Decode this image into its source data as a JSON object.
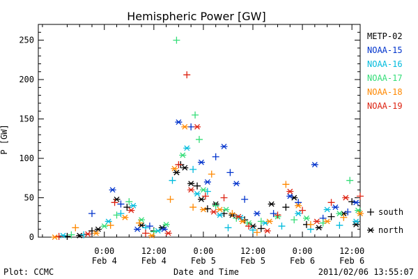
{
  "chart_data": {
    "type": "scatter",
    "title": "Hemispheric Power [GW]",
    "ylabel": "P [GW]",
    "xlabel": "Date and Time",
    "ylim": [
      0,
      270
    ],
    "yticks": [
      0,
      50,
      100,
      150,
      200,
      250
    ],
    "xlim_hours": [
      -16,
      62
    ],
    "xticks": [
      {
        "hour": 0,
        "time": "0:00",
        "date": "Feb 4"
      },
      {
        "hour": 12,
        "time": "12:00",
        "date": "Feb 4"
      },
      {
        "hour": 24,
        "time": "0:00",
        "date": "Feb 5"
      },
      {
        "hour": 36,
        "time": "12:00",
        "date": "Feb 5"
      },
      {
        "hour": 48,
        "time": "0:00",
        "date": "Feb 6"
      },
      {
        "hour": 60,
        "time": "12:00",
        "date": "Feb 6"
      }
    ],
    "legend": {
      "placement": "right",
      "series_labels": [
        "METP-02",
        "NOAA-15",
        "NOAA-16",
        "NOAA-17",
        "NOAA-18",
        "NOAA-19"
      ],
      "marker_labels": [
        {
          "symbol": "+",
          "label": "south"
        },
        {
          "symbol": "*",
          "label": "north"
        }
      ]
    },
    "series": [
      {
        "name": "METP-02",
        "color": "#000000",
        "points": [
          {
            "x": -9,
            "y": 1,
            "m": "+"
          },
          {
            "x": -6,
            "y": 2,
            "m": "*"
          },
          {
            "x": -3,
            "y": 8,
            "m": "+"
          },
          {
            "x": -1.5,
            "y": 10,
            "m": "*"
          },
          {
            "x": 3,
            "y": 48,
            "m": "*"
          },
          {
            "x": 5.5,
            "y": 38,
            "m": "+"
          },
          {
            "x": 9,
            "y": 15,
            "m": "*"
          },
          {
            "x": 12,
            "y": 8,
            "m": "+"
          },
          {
            "x": 14,
            "y": 12,
            "m": "*"
          },
          {
            "x": 17.5,
            "y": 82,
            "m": "*"
          },
          {
            "x": 18.5,
            "y": 92,
            "m": "+"
          },
          {
            "x": 19.5,
            "y": 88,
            "m": "*"
          },
          {
            "x": 21,
            "y": 68,
            "m": "*"
          },
          {
            "x": 22.5,
            "y": 65,
            "m": "+"
          },
          {
            "x": 23.5,
            "y": 48,
            "m": "*"
          },
          {
            "x": 25,
            "y": 36,
            "m": "+"
          },
          {
            "x": 27,
            "y": 42,
            "m": "*"
          },
          {
            "x": 29,
            "y": 30,
            "m": "+"
          },
          {
            "x": 31,
            "y": 28,
            "m": "*"
          },
          {
            "x": 34,
            "y": 22,
            "m": "+"
          },
          {
            "x": 36,
            "y": 14,
            "m": "*"
          },
          {
            "x": 38,
            "y": 11,
            "m": "+"
          },
          {
            "x": 40.5,
            "y": 42,
            "m": "*"
          },
          {
            "x": 44,
            "y": 38,
            "m": "+"
          },
          {
            "x": 46,
            "y": 50,
            "m": "*"
          },
          {
            "x": 49,
            "y": 16,
            "m": "+"
          },
          {
            "x": 52,
            "y": 12,
            "m": "*"
          },
          {
            "x": 55,
            "y": 26,
            "m": "+"
          },
          {
            "x": 58,
            "y": 30,
            "m": "*"
          },
          {
            "x": 60,
            "y": 45,
            "m": "+"
          },
          {
            "x": 61,
            "y": 16,
            "m": "*"
          }
        ]
      },
      {
        "name": "NOAA-15",
        "color": "#0033cc",
        "points": [
          {
            "x": -3,
            "y": 30,
            "m": "+"
          },
          {
            "x": 2,
            "y": 60,
            "m": "*"
          },
          {
            "x": 4,
            "y": 42,
            "m": "+"
          },
          {
            "x": 8,
            "y": 10,
            "m": "*"
          },
          {
            "x": 11,
            "y": 14,
            "m": "+"
          },
          {
            "x": 14.5,
            "y": 10,
            "m": "*"
          },
          {
            "x": 18,
            "y": 146,
            "m": "*"
          },
          {
            "x": 21,
            "y": 140,
            "m": "+"
          },
          {
            "x": 23.5,
            "y": 95,
            "m": "*"
          },
          {
            "x": 25,
            "y": 70,
            "m": "*"
          },
          {
            "x": 27,
            "y": 102,
            "m": "+"
          },
          {
            "x": 29,
            "y": 115,
            "m": "*"
          },
          {
            "x": 30.5,
            "y": 82,
            "m": "+"
          },
          {
            "x": 32,
            "y": 68,
            "m": "*"
          },
          {
            "x": 34,
            "y": 48,
            "m": "+"
          },
          {
            "x": 37,
            "y": 30,
            "m": "*"
          },
          {
            "x": 41,
            "y": 30,
            "m": "+"
          },
          {
            "x": 45,
            "y": 52,
            "m": "*"
          },
          {
            "x": 47,
            "y": 44,
            "m": "+"
          },
          {
            "x": 51,
            "y": 92,
            "m": "*"
          },
          {
            "x": 53,
            "y": 24,
            "m": "+"
          },
          {
            "x": 56,
            "y": 38,
            "m": "*"
          },
          {
            "x": 59,
            "y": 32,
            "m": "+"
          },
          {
            "x": 61,
            "y": 44,
            "m": "*"
          }
        ]
      },
      {
        "name": "NOAA-16",
        "color": "#00bbdd",
        "points": [
          {
            "x": -10,
            "y": 2,
            "m": "*"
          },
          {
            "x": -5,
            "y": 3,
            "m": "+"
          },
          {
            "x": 1,
            "y": 20,
            "m": "*"
          },
          {
            "x": 4,
            "y": 30,
            "m": "+"
          },
          {
            "x": 7,
            "y": 40,
            "m": "*"
          },
          {
            "x": 10,
            "y": 12,
            "m": "+"
          },
          {
            "x": 13,
            "y": 8,
            "m": "*"
          },
          {
            "x": 16.5,
            "y": 72,
            "m": "+"
          },
          {
            "x": 20,
            "y": 113,
            "m": "*"
          },
          {
            "x": 21.5,
            "y": 86,
            "m": "+"
          },
          {
            "x": 22.5,
            "y": 55,
            "m": "*"
          },
          {
            "x": 25,
            "y": 58,
            "m": "+"
          },
          {
            "x": 28,
            "y": 28,
            "m": "*"
          },
          {
            "x": 30,
            "y": 12,
            "m": "+"
          },
          {
            "x": 33,
            "y": 25,
            "m": "*"
          },
          {
            "x": 36,
            "y": 9,
            "m": "+"
          },
          {
            "x": 39,
            "y": 18,
            "m": "*"
          },
          {
            "x": 43,
            "y": 14,
            "m": "+"
          },
          {
            "x": 47,
            "y": 30,
            "m": "*"
          },
          {
            "x": 50,
            "y": 10,
            "m": "+"
          },
          {
            "x": 54,
            "y": 35,
            "m": "*"
          },
          {
            "x": 57,
            "y": 15,
            "m": "+"
          },
          {
            "x": 61,
            "y": 20,
            "m": "*"
          }
        ]
      },
      {
        "name": "NOAA-17",
        "color": "#33dd77",
        "points": [
          {
            "x": -8,
            "y": 3,
            "m": "+"
          },
          {
            "x": 0,
            "y": 14,
            "m": "*"
          },
          {
            "x": 3,
            "y": 28,
            "m": "+"
          },
          {
            "x": 6,
            "y": 45,
            "m": "+"
          },
          {
            "x": 9,
            "y": 22,
            "m": "*"
          },
          {
            "x": 12,
            "y": 7,
            "m": "+"
          },
          {
            "x": 15,
            "y": 16,
            "m": "*"
          },
          {
            "x": 17.5,
            "y": 250,
            "m": "+"
          },
          {
            "x": 19,
            "y": 104,
            "m": "*"
          },
          {
            "x": 22,
            "y": 155,
            "m": "+"
          },
          {
            "x": 23,
            "y": 124,
            "m": "+"
          },
          {
            "x": 24,
            "y": 60,
            "m": "*"
          },
          {
            "x": 27,
            "y": 40,
            "m": "+"
          },
          {
            "x": 29.5,
            "y": 35,
            "m": "*"
          },
          {
            "x": 32,
            "y": 24,
            "m": "+"
          },
          {
            "x": 35,
            "y": 18,
            "m": "*"
          },
          {
            "x": 38,
            "y": 20,
            "m": "+"
          },
          {
            "x": 42,
            "y": 26,
            "m": "*"
          },
          {
            "x": 46,
            "y": 22,
            "m": "+"
          },
          {
            "x": 49,
            "y": 24,
            "m": "*"
          },
          {
            "x": 53,
            "y": 18,
            "m": "+"
          },
          {
            "x": 57,
            "y": 30,
            "m": "*"
          },
          {
            "x": 59.5,
            "y": 72,
            "m": "+"
          },
          {
            "x": 61.5,
            "y": 34,
            "m": "*"
          }
        ]
      },
      {
        "name": "NOAA-18",
        "color": "#ff8800",
        "points": [
          {
            "x": -12,
            "y": 0,
            "m": "*"
          },
          {
            "x": -7,
            "y": 12,
            "m": "+"
          },
          {
            "x": -2,
            "y": 5,
            "m": "*"
          },
          {
            "x": 1.5,
            "y": 15,
            "m": "+"
          },
          {
            "x": 5,
            "y": 25,
            "m": "*"
          },
          {
            "x": 8.5,
            "y": 18,
            "m": "+"
          },
          {
            "x": 11.5,
            "y": 2,
            "m": "*"
          },
          {
            "x": 16,
            "y": 48,
            "m": "+"
          },
          {
            "x": 17,
            "y": 87,
            "m": "*"
          },
          {
            "x": 19.5,
            "y": 140,
            "m": "*"
          },
          {
            "x": 21.5,
            "y": 38,
            "m": "+"
          },
          {
            "x": 24,
            "y": 35,
            "m": "*"
          },
          {
            "x": 26,
            "y": 80,
            "m": "+"
          },
          {
            "x": 28,
            "y": 35,
            "m": "*"
          },
          {
            "x": 31,
            "y": 30,
            "m": "+"
          },
          {
            "x": 33.5,
            "y": 20,
            "m": "*"
          },
          {
            "x": 37,
            "y": 6,
            "m": "+"
          },
          {
            "x": 40,
            "y": 20,
            "m": "*"
          },
          {
            "x": 44,
            "y": 67,
            "m": "+"
          },
          {
            "x": 47,
            "y": 40,
            "m": "*"
          },
          {
            "x": 50,
            "y": 16,
            "m": "+"
          },
          {
            "x": 54,
            "y": 20,
            "m": "*"
          },
          {
            "x": 58,
            "y": 25,
            "m": "+"
          },
          {
            "x": 62,
            "y": 30,
            "m": "*"
          }
        ]
      },
      {
        "name": "NOAA-19",
        "color": "#dd2211",
        "points": [
          {
            "x": -11,
            "y": 1,
            "m": "+"
          },
          {
            "x": -4,
            "y": 4,
            "m": "*"
          },
          {
            "x": 2.5,
            "y": 44,
            "m": "+"
          },
          {
            "x": 6.5,
            "y": 34,
            "m": "*"
          },
          {
            "x": 10,
            "y": 5,
            "m": "+"
          },
          {
            "x": 15.5,
            "y": 5,
            "m": "*"
          },
          {
            "x": 18,
            "y": 92,
            "m": "+"
          },
          {
            "x": 20,
            "y": 206,
            "m": "+"
          },
          {
            "x": 21,
            "y": 60,
            "m": "*"
          },
          {
            "x": 22.5,
            "y": 140,
            "m": "*"
          },
          {
            "x": 24.5,
            "y": 52,
            "m": "+"
          },
          {
            "x": 26.5,
            "y": 32,
            "m": "*"
          },
          {
            "x": 29,
            "y": 50,
            "m": "+"
          },
          {
            "x": 32.5,
            "y": 26,
            "m": "*"
          },
          {
            "x": 35,
            "y": 14,
            "m": "+"
          },
          {
            "x": 39.5,
            "y": 8,
            "m": "*"
          },
          {
            "x": 42,
            "y": 28,
            "m": "+"
          },
          {
            "x": 45,
            "y": 58,
            "m": "*"
          },
          {
            "x": 48,
            "y": 34,
            "m": "+"
          },
          {
            "x": 51.5,
            "y": 20,
            "m": "*"
          },
          {
            "x": 55,
            "y": 44,
            "m": "+"
          },
          {
            "x": 58.5,
            "y": 50,
            "m": "*"
          },
          {
            "x": 62,
            "y": 52,
            "m": "+"
          }
        ]
      }
    ]
  },
  "footer": {
    "plot_label": "Plot: CCMC",
    "timestamp": "2011/02/06 13:55:07"
  }
}
